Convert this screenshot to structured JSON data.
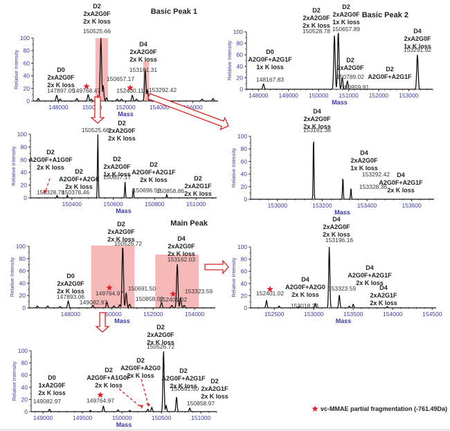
{
  "legend": {
    "text": "vc-MMAE partial fragmentation (-761.49Da)",
    "marker": "star-icon",
    "color": "#e8202a"
  },
  "colors": {
    "highlight": "#f4a0a0",
    "arrow": "#e02020",
    "axis": "#3a3aa8",
    "trace": "#111111",
    "star": "#e8202a"
  },
  "chart_data": [
    {
      "id": "bp1-full",
      "type": "line",
      "title": "Basic Peak 1",
      "xlabel": "Mass",
      "ylabel": "Relative Intensity",
      "xlim": [
        146500,
        157500
      ],
      "ylim": [
        0,
        100
      ],
      "xticks": [
        148000,
        150000,
        152000,
        154000,
        156000
      ],
      "yticks": [
        0,
        20,
        40,
        60,
        80,
        100
      ],
      "highlights": [
        [
          150200,
          150950
        ],
        [
          153050,
          153400
        ]
      ],
      "peaks": [
        {
          "x": 146800,
          "y": 4
        },
        {
          "x": 147897.05,
          "y": 9
        },
        {
          "x": 148100,
          "y": 3
        },
        {
          "x": 149100,
          "y": 4
        },
        {
          "x": 149768.47,
          "y": 10
        },
        {
          "x": 149950,
          "y": 3
        },
        {
          "x": 150328.78,
          "y": 4
        },
        {
          "x": 150525.66,
          "y": 100
        },
        {
          "x": 150657.17,
          "y": 25
        },
        {
          "x": 150858.86,
          "y": 5
        },
        {
          "x": 151500,
          "y": 3
        },
        {
          "x": 151750,
          "y": 3
        },
        {
          "x": 152400.11,
          "y": 9
        },
        {
          "x": 152650,
          "y": 3
        },
        {
          "x": 153161.31,
          "y": 51
        },
        {
          "x": 153292.42,
          "y": 18
        },
        {
          "x": 153800,
          "y": 3
        },
        {
          "x": 156550,
          "y": 3
        },
        {
          "x": 157200,
          "y": 4
        }
      ],
      "annotations": [
        {
          "lines": [
            "D2",
            "2xA2G0F",
            "2x K loss"
          ],
          "mass": "150525.66"
        },
        {
          "lines": [
            "D4",
            "2xA2G0F",
            "2x K loss"
          ],
          "mass": "153161.31"
        },
        {
          "lines": [
            "D0",
            "2xA2G0F",
            "2x K loss"
          ],
          "mass": "147897.05"
        },
        {
          "lines": [],
          "mass": "150657.17"
        },
        {
          "lines": [],
          "mass": "149768.47",
          "star": true
        },
        {
          "lines": [],
          "mass": "152400.11",
          "star": true
        },
        {
          "lines": [],
          "mass": "153292.42"
        }
      ]
    },
    {
      "id": "bp2-full",
      "type": "line",
      "title": "Basic Peak 2",
      "xlabel": "Mass",
      "ylabel": "Relative Intensity",
      "xlim": [
        147600,
        153800
      ],
      "ylim": [
        0,
        100
      ],
      "xticks": [
        148000,
        149000,
        150000,
        151000,
        152000,
        153000
      ],
      "yticks": [
        0,
        20,
        40,
        60,
        80,
        100
      ],
      "peaks": [
        {
          "x": 148167.83,
          "y": 9
        },
        {
          "x": 150528.78,
          "y": 94
        },
        {
          "x": 150657.89,
          "y": 100
        },
        {
          "x": 150789.02,
          "y": 20
        },
        {
          "x": 150959.91,
          "y": 14
        },
        {
          "x": 153291.92,
          "y": 60
        }
      ],
      "annotations": [
        {
          "lines": [
            "D0",
            "A2G0F+A2G1F",
            "1x K loss"
          ],
          "mass": "148167.83"
        },
        {
          "lines": [
            "D2",
            "2xA2G0F",
            "2x K loss"
          ],
          "mass": "150528.78"
        },
        {
          "lines": [
            "D2",
            "2xA2G0F",
            "1x K loss"
          ],
          "mass": "150657.89"
        },
        {
          "lines": [
            "D2",
            "2xA2G0F"
          ],
          "mass": "150789.02"
        },
        {
          "lines": [
            "D2",
            "A2G0F+A2G1F"
          ],
          "mass": "150959.91"
        },
        {
          "lines": [
            "D4",
            "2xA2G0F",
            "1x K loss"
          ],
          "mass": "153291.92"
        }
      ]
    },
    {
      "id": "bp1-d2-zoom",
      "type": "line",
      "title": "",
      "xlabel": "Mass",
      "ylabel": "Relative Intensity",
      "xlim": [
        150200,
        151100
      ],
      "ylim": [
        0,
        100
      ],
      "xticks": [
        150400,
        150600,
        150800,
        151000
      ],
      "yticks": [
        0,
        20,
        40,
        60,
        80,
        100
      ],
      "peaks": [
        {
          "x": 150328.78,
          "y": 4
        },
        {
          "x": 150378.46,
          "y": 4
        },
        {
          "x": 150525.66,
          "y": 100
        },
        {
          "x": 150657.17,
          "y": 25
        },
        {
          "x": 150696.56,
          "y": 15
        },
        {
          "x": 150858.86,
          "y": 5
        }
      ],
      "annotations": [
        {
          "lines": [
            "D2",
            "A2G0F+A1G0F",
            "2x K loss"
          ],
          "mass": "150328.78"
        },
        {
          "lines": [
            "D2",
            "A2G0F+A2G0",
            "2x K loss"
          ],
          "mass": "150378.46"
        },
        {
          "lines": [
            "D2",
            "2xA2G0F",
            "2x K loss"
          ],
          "mass": "150525.66"
        },
        {
          "lines": [
            "D2",
            "2xA2G0F",
            "1x K loss"
          ],
          "mass": "150657.17"
        },
        {
          "lines": [
            "D2",
            "A2G0F+A2G1F",
            "2x K loss"
          ],
          "mass": "150696.56"
        },
        {
          "lines": [
            "D2",
            "2xA2G1F",
            "2x K loss"
          ],
          "mass": "150858.86"
        }
      ]
    },
    {
      "id": "bp1-d4-zoom",
      "type": "line",
      "title": "",
      "xlabel": "Mass",
      "ylabel": "Relative Intensity",
      "xlim": [
        152880,
        153700
      ],
      "ylim": [
        0,
        100
      ],
      "xticks": [
        153000,
        153200,
        153400,
        153600
      ],
      "yticks": [
        0,
        20,
        40,
        60,
        80,
        100
      ],
      "peaks": [
        {
          "x": 153161.36,
          "y": 100
        },
        {
          "x": 153292.42,
          "y": 35
        },
        {
          "x": 153328.36,
          "y": 18
        }
      ],
      "annotations": [
        {
          "lines": [
            "D4",
            "2xA2G0F",
            "2x K loss"
          ],
          "mass": "153161.36"
        },
        {
          "lines": [
            "D4",
            "2xA2G0F",
            "1x K loss"
          ],
          "mass": "153292.42"
        },
        {
          "lines": [
            "D4",
            "A2G0F+A2G1F",
            "2x K loss"
          ],
          "mass": "153328.36"
        }
      ]
    },
    {
      "id": "main-full",
      "type": "line",
      "title": "Main Peak",
      "xlabel": "Mass",
      "ylabel": "Relative Intensity",
      "xlim": [
        146000,
        155000
      ],
      "ylim": [
        0,
        100
      ],
      "xticks": [
        148000,
        150000,
        152000,
        154000
      ],
      "yticks": [
        0,
        20,
        40,
        60,
        80,
        100
      ],
      "highlights": [
        [
          149000,
          151100
        ],
        [
          152100,
          154200
        ]
      ],
      "peaks": [
        {
          "x": 146400,
          "y": 3
        },
        {
          "x": 146900,
          "y": 3
        },
        {
          "x": 147500,
          "y": 2
        },
        {
          "x": 147893.06,
          "y": 11
        },
        {
          "x": 149082.97,
          "y": 4
        },
        {
          "x": 149764.97,
          "y": 9
        },
        {
          "x": 150100,
          "y": 3
        },
        {
          "x": 150378,
          "y": 5
        },
        {
          "x": 150526.72,
          "y": 100
        },
        {
          "x": 150691.5,
          "y": 24
        },
        {
          "x": 150858.02,
          "y": 6
        },
        {
          "x": 152401.02,
          "y": 9
        },
        {
          "x": 152900,
          "y": 4
        },
        {
          "x": 153162.03,
          "y": 71
        },
        {
          "x": 153323.59,
          "y": 16
        },
        {
          "x": 153500,
          "y": 4
        }
      ],
      "annotations": [
        {
          "lines": [
            "D2",
            "2xA2G0F",
            "2x K loss"
          ],
          "mass": "150526.72"
        },
        {
          "lines": [
            "D4",
            "2xA2G0F",
            "2x K loss"
          ],
          "mass": "153162.03"
        },
        {
          "lines": [
            "D0",
            "2xA2G0F",
            "2x K loss"
          ],
          "mass": "147893.06"
        },
        {
          "lines": [],
          "mass": "149082.97"
        },
        {
          "lines": [],
          "mass": "149764.97",
          "star": true
        },
        {
          "lines": [],
          "mass": "150691.50"
        },
        {
          "lines": [],
          "mass": "150858.02"
        },
        {
          "lines": [],
          "mass": "152401.02",
          "star": true
        },
        {
          "lines": [],
          "mass": "153323.59"
        }
      ]
    },
    {
      "id": "main-d4-zoom",
      "type": "line",
      "title": "",
      "xlabel": "Mass",
      "ylabel": "Relative Intensity",
      "xlim": [
        152200,
        154550
      ],
      "ylim": [
        0,
        100
      ],
      "xticks": [
        152500,
        153000,
        153500,
        154000,
        154500
      ],
      "yticks": [
        0,
        20,
        40,
        60,
        80,
        100
      ],
      "peaks": [
        {
          "x": 152401.02,
          "y": 12
        },
        {
          "x": 152560,
          "y": 3
        },
        {
          "x": 152810,
          "y": 2
        },
        {
          "x": 153018.23,
          "y": 7
        },
        {
          "x": 153196.16,
          "y": 100
        },
        {
          "x": 153323.59,
          "y": 21
        },
        {
          "x": 153450,
          "y": 3
        },
        {
          "x": 153500,
          "y": 6
        },
        {
          "x": 153930,
          "y": 2
        }
      ],
      "annotations": [
        {
          "lines": [],
          "mass": "152401.02",
          "star": true
        },
        {
          "lines": [
            "D4",
            "A2G0F+A2G0",
            "2x K loss"
          ],
          "mass": "153018.23"
        },
        {
          "lines": [
            "D4",
            "2xA2G0F",
            "2x K loss"
          ],
          "mass": "153196.16"
        },
        {
          "lines": [
            "D4",
            "A2G0F+A2G1F",
            "2x K loss"
          ],
          "mass": "153323.59"
        },
        {
          "lines": [
            "D4",
            "2xA2G1F",
            "2x K loss"
          ],
          "mass": ""
        }
      ]
    },
    {
      "id": "main-d2-zoom",
      "type": "line",
      "title": "",
      "xlabel": "Mass",
      "ylabel": "Relative Intensity",
      "xlim": [
        148850,
        151200
      ],
      "ylim": [
        0,
        100
      ],
      "xticks": [
        149000,
        149500,
        150000,
        150500,
        151000
      ],
      "yticks": [
        0,
        20,
        40,
        60,
        80,
        100
      ],
      "peaks": [
        {
          "x": 149082.97,
          "y": 4
        },
        {
          "x": 149600,
          "y": 2
        },
        {
          "x": 149764.97,
          "y": 9
        },
        {
          "x": 149950,
          "y": 3
        },
        {
          "x": 150100,
          "y": 2
        },
        {
          "x": 150328,
          "y": 4
        },
        {
          "x": 150378,
          "y": 7
        },
        {
          "x": 150526.72,
          "y": 100
        },
        {
          "x": 150560,
          "y": 10
        },
        {
          "x": 150691.5,
          "y": 24
        },
        {
          "x": 150858.97,
          "y": 6
        }
      ],
      "annotations": [
        {
          "lines": [
            "D0",
            "1xA2G0F",
            "2x K loss"
          ],
          "mass": "149082.97"
        },
        {
          "lines": [],
          "mass": "149764.97",
          "star": true
        },
        {
          "lines": [
            "D2",
            "A2G0F+A1G0F",
            "2x K loss"
          ],
          "mass": ""
        },
        {
          "lines": [
            "D2",
            "A2G0F+A2G0",
            "2x K loss"
          ],
          "mass": ""
        },
        {
          "lines": [
            "D2",
            "2xA2G0F",
            "2x K loss"
          ],
          "mass": "150526.72"
        },
        {
          "lines": [
            "D2",
            "A2G0F+A2G1F",
            "2x K loss"
          ],
          "mass": "150691.50"
        },
        {
          "lines": [
            "D2",
            "2xA2G1F",
            "2x K loss"
          ],
          "mass": "150858.97"
        }
      ]
    }
  ]
}
